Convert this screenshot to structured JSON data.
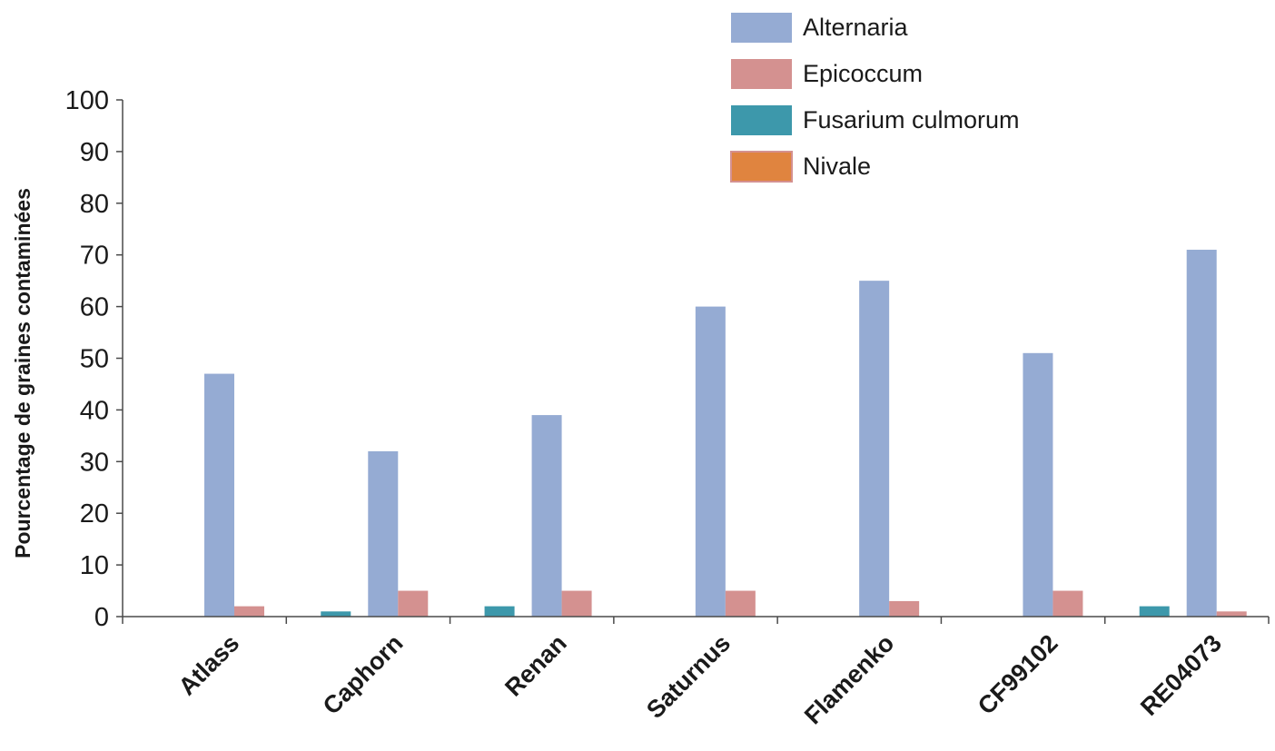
{
  "chart_data": {
    "type": "bar",
    "ylabel": "Pourcentage de graines contaminées",
    "xlabel": "",
    "ylim": [
      0,
      100
    ],
    "yticks": [
      0,
      10,
      20,
      30,
      40,
      50,
      60,
      70,
      80,
      90,
      100
    ],
    "grid": false,
    "legend_position": "top-right",
    "categories": [
      "Atlass",
      "Caphorn",
      "Renan",
      "Saturnus",
      "Flamenko",
      "CF99102",
      "RE04073"
    ],
    "series": [
      {
        "name": "Alternaria",
        "color": "#95abd3",
        "values": [
          47,
          32,
          39,
          60,
          65,
          51,
          71
        ]
      },
      {
        "name": "Epicoccum",
        "color": "#d49190",
        "values": [
          2,
          5,
          5,
          5,
          3,
          5,
          1
        ]
      },
      {
        "name": "Fusarium culmorum",
        "color": "#3d98ab",
        "values": [
          0,
          1,
          2,
          0,
          0,
          0,
          2
        ]
      },
      {
        "name": "Nivale",
        "color": "#e0843f",
        "values": [
          0,
          0,
          0,
          0,
          0,
          0,
          0
        ]
      }
    ]
  }
}
